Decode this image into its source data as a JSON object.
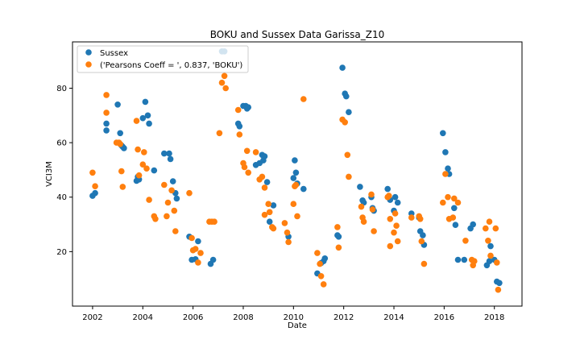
{
  "chart_data": {
    "type": "scatter",
    "title": "BOKU and Sussex Data Garissa_Z10",
    "xlabel": "Date",
    "ylabel": "VCI3M",
    "xlim": [
      2001.2,
      2019.1
    ],
    "ylim": [
      0,
      97
    ],
    "x_ticks": [
      2002,
      2004,
      2006,
      2008,
      2010,
      2012,
      2014,
      2016,
      2018
    ],
    "x_tick_labels": [
      "2002",
      "2004",
      "2006",
      "2008",
      "2010",
      "2012",
      "2014",
      "2016",
      "2018"
    ],
    "y_ticks": [
      20,
      40,
      60,
      80
    ],
    "y_tick_labels": [
      "20",
      "40",
      "60",
      "80"
    ],
    "grid": false,
    "legend_position": "upper-left",
    "series": [
      {
        "name": "Sussex",
        "color": "#1f77b4",
        "points": [
          [
            2002.0,
            40.5
          ],
          [
            2002.1,
            41.5
          ],
          [
            2002.55,
            64.5
          ],
          [
            2002.55,
            67.0
          ],
          [
            2003.0,
            74.0
          ],
          [
            2003.1,
            63.5
          ],
          [
            2003.15,
            59.0
          ],
          [
            2003.2,
            58.5
          ],
          [
            2003.25,
            58.0
          ],
          [
            2003.75,
            46.0
          ],
          [
            2003.8,
            47.5
          ],
          [
            2003.85,
            46.5
          ],
          [
            2004.0,
            69.0
          ],
          [
            2004.1,
            75.0
          ],
          [
            2004.2,
            70.0
          ],
          [
            2004.25,
            67.0
          ],
          [
            2004.45,
            49.8
          ],
          [
            2004.85,
            56.0
          ],
          [
            2005.05,
            56.0
          ],
          [
            2005.1,
            54.0
          ],
          [
            2005.2,
            45.8
          ],
          [
            2005.3,
            41.5
          ],
          [
            2005.35,
            39.5
          ],
          [
            2005.85,
            25.5
          ],
          [
            2005.95,
            17.0
          ],
          [
            2006.1,
            17.2
          ],
          [
            2006.2,
            23.8
          ],
          [
            2006.7,
            15.5
          ],
          [
            2006.8,
            17.0
          ],
          [
            2007.15,
            93.5
          ],
          [
            2007.25,
            93.5
          ],
          [
            2007.8,
            67.0
          ],
          [
            2007.85,
            66.0
          ],
          [
            2008.0,
            73.5
          ],
          [
            2008.1,
            73.5
          ],
          [
            2008.15,
            72.5
          ],
          [
            2008.2,
            73.0
          ],
          [
            2008.5,
            51.8
          ],
          [
            2008.65,
            52.5
          ],
          [
            2008.75,
            55.5
          ],
          [
            2008.8,
            53.5
          ],
          [
            2008.85,
            55.0
          ],
          [
            2008.95,
            45.5
          ],
          [
            2009.05,
            31.0
          ],
          [
            2009.2,
            37.0
          ],
          [
            2009.8,
            25.5
          ],
          [
            2010.0,
            47.0
          ],
          [
            2010.05,
            53.5
          ],
          [
            2010.1,
            49.0
          ],
          [
            2010.15,
            45.0
          ],
          [
            2010.4,
            43.0
          ],
          [
            2010.95,
            12.0
          ],
          [
            2011.1,
            15.8
          ],
          [
            2011.2,
            16.5
          ],
          [
            2011.25,
            17.5
          ],
          [
            2011.75,
            26.0
          ],
          [
            2011.8,
            25.5
          ],
          [
            2011.95,
            87.5
          ],
          [
            2012.05,
            78.0
          ],
          [
            2012.1,
            77.0
          ],
          [
            2012.2,
            71.2
          ],
          [
            2012.65,
            43.8
          ],
          [
            2012.75,
            38.8
          ],
          [
            2012.8,
            38.0
          ],
          [
            2013.1,
            40.0
          ],
          [
            2013.15,
            36.0
          ],
          [
            2013.2,
            35.0
          ],
          [
            2013.75,
            43.0
          ],
          [
            2013.8,
            40.0
          ],
          [
            2013.85,
            39.0
          ],
          [
            2014.0,
            35.0
          ],
          [
            2014.05,
            40.0
          ],
          [
            2014.15,
            38.0
          ],
          [
            2014.7,
            34.0
          ],
          [
            2015.0,
            32.5
          ],
          [
            2015.05,
            27.5
          ],
          [
            2015.15,
            26.0
          ],
          [
            2015.2,
            22.5
          ],
          [
            2015.95,
            63.5
          ],
          [
            2016.05,
            56.5
          ],
          [
            2016.15,
            50.5
          ],
          [
            2016.2,
            48.5
          ],
          [
            2016.4,
            36.0
          ],
          [
            2016.45,
            29.8
          ],
          [
            2016.55,
            17.0
          ],
          [
            2016.8,
            17.0
          ],
          [
            2017.05,
            28.5
          ],
          [
            2017.15,
            30.0
          ],
          [
            2017.7,
            15.0
          ],
          [
            2017.8,
            16.5
          ],
          [
            2017.85,
            22.0
          ],
          [
            2018.0,
            17.0
          ],
          [
            2018.1,
            9.0
          ],
          [
            2018.2,
            8.5
          ]
        ]
      },
      {
        "name": "('Pearsons Coeff = ', 0.837, 'BOKU')",
        "color": "#ff7f0e",
        "points": [
          [
            2002.0,
            49.0
          ],
          [
            2002.1,
            44.0
          ],
          [
            2002.55,
            77.5
          ],
          [
            2002.55,
            71.0
          ],
          [
            2002.95,
            60.0
          ],
          [
            2003.05,
            60.0
          ],
          [
            2003.1,
            59.5
          ],
          [
            2003.15,
            49.5
          ],
          [
            2003.2,
            43.8
          ],
          [
            2003.75,
            68.0
          ],
          [
            2003.8,
            57.5
          ],
          [
            2003.85,
            48.0
          ],
          [
            2004.0,
            52.0
          ],
          [
            2004.05,
            56.5
          ],
          [
            2004.15,
            50.5
          ],
          [
            2004.25,
            39.0
          ],
          [
            2004.45,
            33.0
          ],
          [
            2004.5,
            32.0
          ],
          [
            2004.85,
            44.5
          ],
          [
            2004.95,
            33.0
          ],
          [
            2005.0,
            38.0
          ],
          [
            2005.15,
            42.5
          ],
          [
            2005.25,
            35.0
          ],
          [
            2005.3,
            27.5
          ],
          [
            2005.85,
            41.5
          ],
          [
            2005.95,
            25.0
          ],
          [
            2006.0,
            20.5
          ],
          [
            2006.1,
            21.0
          ],
          [
            2006.2,
            16.0
          ],
          [
            2006.3,
            19.5
          ],
          [
            2006.65,
            31.0
          ],
          [
            2006.75,
            31.0
          ],
          [
            2006.85,
            31.0
          ],
          [
            2007.05,
            63.5
          ],
          [
            2007.15,
            82.0
          ],
          [
            2007.25,
            84.5
          ],
          [
            2007.3,
            80.0
          ],
          [
            2007.8,
            72.0
          ],
          [
            2007.85,
            63.0
          ],
          [
            2008.0,
            52.5
          ],
          [
            2008.05,
            51.0
          ],
          [
            2008.15,
            57.0
          ],
          [
            2008.2,
            49.0
          ],
          [
            2008.5,
            56.5
          ],
          [
            2008.65,
            46.5
          ],
          [
            2008.75,
            47.5
          ],
          [
            2008.85,
            43.5
          ],
          [
            2008.85,
            33.5
          ],
          [
            2009.0,
            37.5
          ],
          [
            2009.05,
            34.5
          ],
          [
            2009.15,
            29.0
          ],
          [
            2009.2,
            28.5
          ],
          [
            2009.65,
            30.5
          ],
          [
            2009.75,
            27.0
          ],
          [
            2009.8,
            23.5
          ],
          [
            2010.0,
            37.5
          ],
          [
            2010.05,
            44.0
          ],
          [
            2010.1,
            44.5
          ],
          [
            2010.15,
            33.0
          ],
          [
            2010.4,
            76.0
          ],
          [
            2010.95,
            19.5
          ],
          [
            2011.05,
            15.5
          ],
          [
            2011.1,
            11.0
          ],
          [
            2011.2,
            8.0
          ],
          [
            2011.75,
            29.0
          ],
          [
            2011.8,
            21.5
          ],
          [
            2011.95,
            68.5
          ],
          [
            2012.05,
            67.5
          ],
          [
            2012.15,
            55.5
          ],
          [
            2012.2,
            47.5
          ],
          [
            2012.7,
            36.5
          ],
          [
            2012.75,
            32.5
          ],
          [
            2012.8,
            31.0
          ],
          [
            2013.1,
            41.0
          ],
          [
            2013.15,
            35.5
          ],
          [
            2013.2,
            27.5
          ],
          [
            2013.75,
            40.0
          ],
          [
            2013.8,
            40.5
          ],
          [
            2013.85,
            32.0
          ],
          [
            2013.85,
            22.0
          ],
          [
            2014.0,
            27.0
          ],
          [
            2014.05,
            34.0
          ],
          [
            2014.1,
            29.5
          ],
          [
            2014.15,
            23.8
          ],
          [
            2014.7,
            32.5
          ],
          [
            2015.0,
            33.0
          ],
          [
            2015.05,
            32.0
          ],
          [
            2015.1,
            23.8
          ],
          [
            2015.2,
            15.5
          ],
          [
            2015.95,
            38.0
          ],
          [
            2016.05,
            48.5
          ],
          [
            2016.15,
            40.0
          ],
          [
            2016.2,
            32.0
          ],
          [
            2016.35,
            32.5
          ],
          [
            2016.4,
            39.5
          ],
          [
            2016.55,
            38.0
          ],
          [
            2016.85,
            24.0
          ],
          [
            2017.1,
            17.0
          ],
          [
            2017.15,
            15.0
          ],
          [
            2017.2,
            16.5
          ],
          [
            2017.65,
            28.5
          ],
          [
            2017.75,
            24.0
          ],
          [
            2017.8,
            31.0
          ],
          [
            2017.85,
            18.5
          ],
          [
            2018.05,
            28.5
          ],
          [
            2018.1,
            16.0
          ],
          [
            2018.15,
            6.0
          ]
        ]
      }
    ]
  }
}
